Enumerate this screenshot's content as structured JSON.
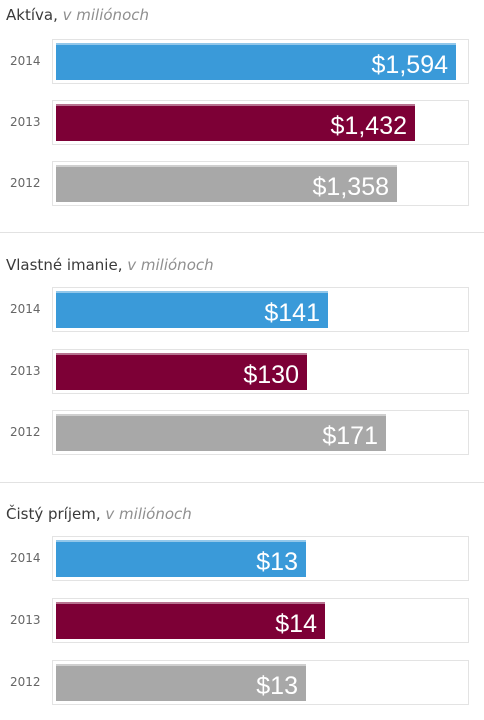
{
  "colors": {
    "2014": "#3a9ad9",
    "2013": "#7d0036",
    "2012": "#a8a8a8"
  },
  "chart_data": [
    {
      "type": "bar",
      "title": "Aktíva",
      "unit": "v miliónoch",
      "categories": [
        "2014",
        "2013",
        "2012"
      ],
      "values": [
        1594,
        1432,
        1358
      ],
      "labels": [
        "$1,594",
        "$1,432",
        "$1,358"
      ],
      "xlim": [
        0,
        1630
      ]
    },
    {
      "type": "bar",
      "title": "Vlastné imanie",
      "unit": "v miliónoch",
      "categories": [
        "2014",
        "2013",
        "2012"
      ],
      "values": [
        141,
        130,
        171
      ],
      "labels": [
        "$141",
        "$130",
        "$171"
      ],
      "xlim": [
        0,
        212
      ]
    },
    {
      "type": "bar",
      "title": "Čistý príjem",
      "unit": "v miliónoch",
      "categories": [
        "2014",
        "2013",
        "2012"
      ],
      "values": [
        13,
        14,
        13
      ],
      "labels": [
        "$13",
        "$14",
        "$13"
      ],
      "xlim": [
        0,
        21.3
      ]
    }
  ]
}
